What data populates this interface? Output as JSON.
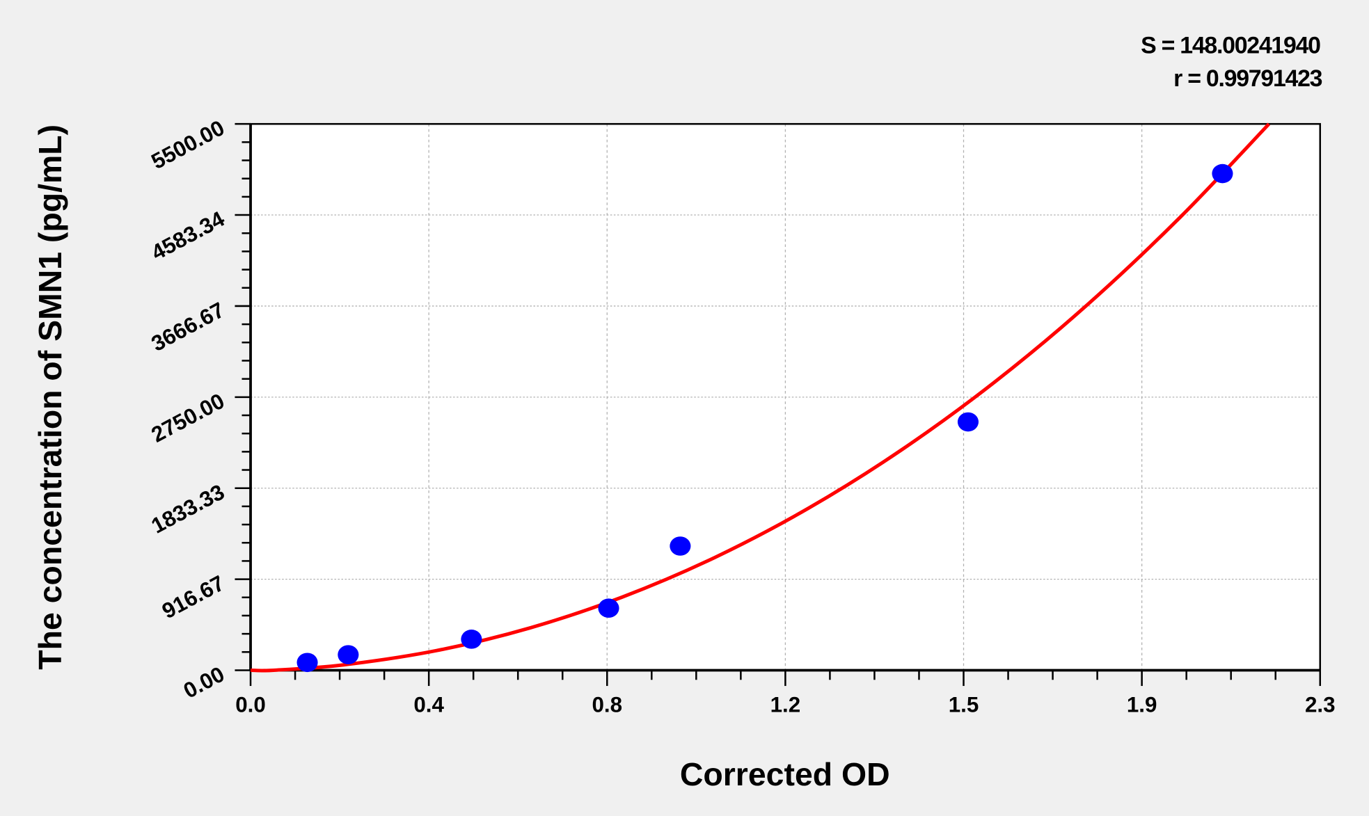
{
  "chart_data": {
    "type": "scatter",
    "xlabel": "Corrected OD",
    "ylabel": "The concentration of SMN1 (pg/mL)",
    "xlim": [
      0.0,
      2.3
    ],
    "ylim": [
      0.0,
      5500.0
    ],
    "x_tick_labels": [
      "0.0",
      "0.4",
      "0.8",
      "1.2",
      "1.5",
      "1.9",
      "2.3"
    ],
    "y_tick_labels": [
      "0.00",
      "916.67",
      "1833.33",
      "2750.00",
      "3666.67",
      "4583.34",
      "5500.00"
    ],
    "grid": true,
    "annotations": {
      "s": "S = 148.00241940",
      "r": "r = 0.99791423"
    },
    "points": {
      "color": "#0000ff",
      "x": [
        0.122,
        0.21,
        0.475,
        0.77,
        0.924,
        1.543,
        2.09
      ],
      "y": [
        78.13,
        156.25,
        312.5,
        625,
        1250,
        2500,
        5000
      ]
    },
    "fit_curve": {
      "color": "#ff0000",
      "x": [
        0.0,
        0.05,
        0.2,
        0.4,
        0.6,
        0.8,
        1.0,
        1.2,
        1.4,
        1.6,
        1.8,
        2.0,
        2.19
      ],
      "y": [
        0,
        0,
        54,
        198,
        425,
        738,
        1139,
        1632,
        2219,
        2901,
        3682,
        4565,
        5500
      ]
    }
  }
}
